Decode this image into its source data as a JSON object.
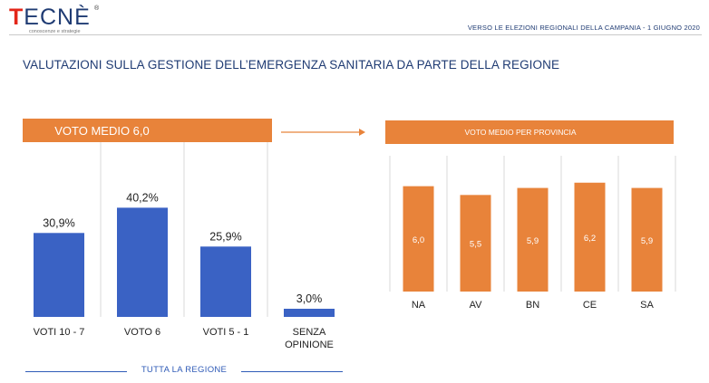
{
  "brand": {
    "name_prefix": "T",
    "name_rest": "ECNÈ",
    "registered": "®",
    "tagline": "conoscenze e strategie"
  },
  "header": {
    "text": "VERSO LE ELEZIONI REGIONALI DELLA CAMPANIA - 1 GIUGNO 2020"
  },
  "title": "VALUTAZIONI SULLA GESTIONE DELL’EMERGENZA SANITARIA DA PARTE DELLA REGIONE",
  "footer": {
    "label": "TUTTA LA REGIONE"
  },
  "colors": {
    "blue": "#3a62c4",
    "orange": "#e8833a",
    "gridline": "#d9d9d9",
    "text": "#1f2a5a"
  },
  "chart_data": [
    {
      "type": "bar",
      "title": "VOTO MEDIO 6,0",
      "categories": [
        [
          "VOTI 10 - 7"
        ],
        [
          "VOTO 6"
        ],
        [
          "VOTI 5 - 1"
        ],
        [
          "SENZA",
          "OPINIONE"
        ]
      ],
      "values": [
        30.9,
        40.2,
        25.9,
        3.0
      ],
      "labels": [
        "30,9%",
        "40,2%",
        "25,9%",
        "3,0%"
      ],
      "ylim": [
        0,
        50
      ],
      "color": "#3a62c4"
    },
    {
      "type": "bar",
      "title": "VOTO MEDIO PER PROVINCIA",
      "categories": [
        "NA",
        "AV",
        "BN",
        "CE",
        "SA"
      ],
      "values": [
        6.0,
        5.5,
        5.9,
        6.2,
        5.9
      ],
      "labels": [
        "6,0",
        "5,5",
        "5,9",
        "6,2",
        "5,9"
      ],
      "ylim": [
        0,
        6.6
      ],
      "color": "#e8833a"
    }
  ]
}
